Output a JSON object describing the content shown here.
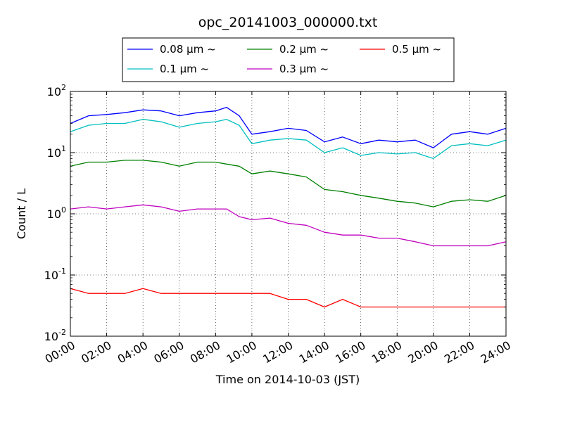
{
  "chart_data": {
    "type": "line",
    "title": "opc_20141003_000000.txt",
    "xlabel": "Time on 2014-10-03 (JST)",
    "ylabel": "Count / L",
    "xlim": [
      0,
      24
    ],
    "ylim": [
      0.01,
      100
    ],
    "yscale": "log",
    "grid": true,
    "legend_position": "top-center",
    "x_ticks": [
      {
        "value": 0,
        "label": "00:00"
      },
      {
        "value": 2,
        "label": "02:00"
      },
      {
        "value": 4,
        "label": "04:00"
      },
      {
        "value": 6,
        "label": "06:00"
      },
      {
        "value": 8,
        "label": "08:00"
      },
      {
        "value": 10,
        "label": "10:00"
      },
      {
        "value": 12,
        "label": "12:00"
      },
      {
        "value": 14,
        "label": "14:00"
      },
      {
        "value": 16,
        "label": "16:00"
      },
      {
        "value": 18,
        "label": "18:00"
      },
      {
        "value": 20,
        "label": "20:00"
      },
      {
        "value": 22,
        "label": "22:00"
      },
      {
        "value": 24,
        "label": "24:00"
      }
    ],
    "y_ticks": [
      {
        "value": 0.01,
        "base": "10",
        "exp": "-2"
      },
      {
        "value": 0.1,
        "base": "10",
        "exp": "-1"
      },
      {
        "value": 1,
        "base": "10",
        "exp": "0"
      },
      {
        "value": 10,
        "base": "10",
        "exp": "1"
      },
      {
        "value": 100,
        "base": "10",
        "exp": "2"
      }
    ],
    "x": [
      0,
      1,
      2,
      3,
      4,
      5,
      6,
      7,
      8,
      8.6,
      9.3,
      10,
      11,
      12,
      13,
      14,
      15,
      16,
      17,
      18,
      19,
      20,
      21,
      22,
      23,
      24
    ],
    "series": [
      {
        "name": "0.08 μm ~",
        "color": "#0000ff",
        "values": [
          30,
          40,
          42,
          45,
          50,
          48,
          40,
          45,
          48,
          55,
          40,
          20,
          22,
          25,
          23,
          15,
          18,
          14,
          16,
          15,
          16,
          12,
          20,
          22,
          20,
          25
        ]
      },
      {
        "name": "0.1 μm ~",
        "color": "#00bfbf",
        "values": [
          22,
          28,
          30,
          30,
          35,
          32,
          26,
          30,
          32,
          35,
          28,
          14,
          16,
          17,
          16,
          10,
          12,
          9,
          10,
          9.5,
          10,
          8,
          13,
          14,
          13,
          16
        ]
      },
      {
        "name": "0.2 μm ~",
        "color": "#008000",
        "values": [
          6,
          7,
          7,
          7.5,
          7.5,
          7,
          6,
          7,
          7,
          6.5,
          6,
          4.5,
          5,
          4.5,
          4,
          2.5,
          2.3,
          2,
          1.8,
          1.6,
          1.5,
          1.3,
          1.6,
          1.7,
          1.6,
          2
        ]
      },
      {
        "name": "0.3 μm ~",
        "color": "#bf00bf",
        "values": [
          1.2,
          1.3,
          1.2,
          1.3,
          1.4,
          1.3,
          1.1,
          1.2,
          1.2,
          1.2,
          0.9,
          0.8,
          0.85,
          0.7,
          0.65,
          0.5,
          0.45,
          0.45,
          0.4,
          0.4,
          0.35,
          0.3,
          0.3,
          0.3,
          0.3,
          0.35
        ]
      },
      {
        "name": "0.5 μm ~",
        "color": "#ff0000",
        "values": [
          0.06,
          0.05,
          0.05,
          0.05,
          0.06,
          0.05,
          0.05,
          0.05,
          0.05,
          0.05,
          0.05,
          0.05,
          0.05,
          0.04,
          0.04,
          0.03,
          0.04,
          0.03,
          0.03,
          0.03,
          0.03,
          0.03,
          0.03,
          0.03,
          0.03,
          0.03
        ]
      }
    ]
  }
}
